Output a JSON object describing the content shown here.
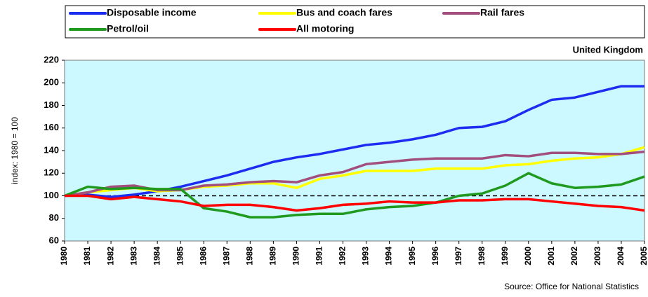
{
  "chart_data": {
    "type": "line",
    "subtitle": "United Kingdom",
    "y_label": "index: 1980 = 100",
    "source": "Source: Office for National Statistics",
    "categories": [
      "1980",
      "1981",
      "1982",
      "1983",
      "1984",
      "1985",
      "1986",
      "1987",
      "1988",
      "1989",
      "1990",
      "1991",
      "1992",
      "1993",
      "1994",
      "1995",
      "1996",
      "1997",
      "1998",
      "1999",
      "2000",
      "2001",
      "2002",
      "2003",
      "2004",
      "2005"
    ],
    "series": [
      {
        "name": "Disposable income",
        "color": "#1c2cf0",
        "values": [
          100,
          101,
          99,
          101,
          104,
          108,
          113,
          118,
          124,
          130,
          134,
          137,
          141,
          145,
          147,
          150,
          154,
          160,
          161,
          166,
          176,
          185,
          187,
          192,
          197,
          197
        ]
      },
      {
        "name": "Bus and coach fares",
        "color": "#ffff00",
        "values": [
          100,
          103,
          105,
          107,
          104,
          105,
          108,
          109,
          111,
          111,
          107,
          115,
          118,
          122,
          122,
          122,
          124,
          124,
          124,
          127,
          128,
          131,
          133,
          134,
          137,
          143
        ]
      },
      {
        "name": "Rail fares",
        "color": "#a24f7e",
        "values": [
          100,
          103,
          108,
          109,
          105,
          105,
          109,
          110,
          112,
          113,
          112,
          118,
          121,
          128,
          130,
          132,
          133,
          133,
          133,
          136,
          135,
          138,
          138,
          137,
          137,
          139
        ]
      },
      {
        "name": "Petrol/oil",
        "color": "#1f9a1f",
        "values": [
          100,
          108,
          106,
          107,
          106,
          106,
          89,
          86,
          81,
          81,
          83,
          84,
          84,
          88,
          90,
          91,
          94,
          100,
          102,
          109,
          120,
          111,
          107,
          108,
          110,
          117
        ]
      },
      {
        "name": "All motoring",
        "color": "#ff0000",
        "values": [
          100,
          100,
          97,
          99,
          97,
          95,
          91,
          92,
          92,
          90,
          87,
          89,
          92,
          93,
          95,
          94,
          94,
          96,
          96,
          97,
          97,
          95,
          93,
          91,
          90,
          87
        ]
      }
    ],
    "reference_line": 100,
    "ylim": [
      60,
      220
    ],
    "yticks": [
      60,
      80,
      100,
      120,
      140,
      160,
      180,
      200,
      220
    ],
    "grid": false
  }
}
